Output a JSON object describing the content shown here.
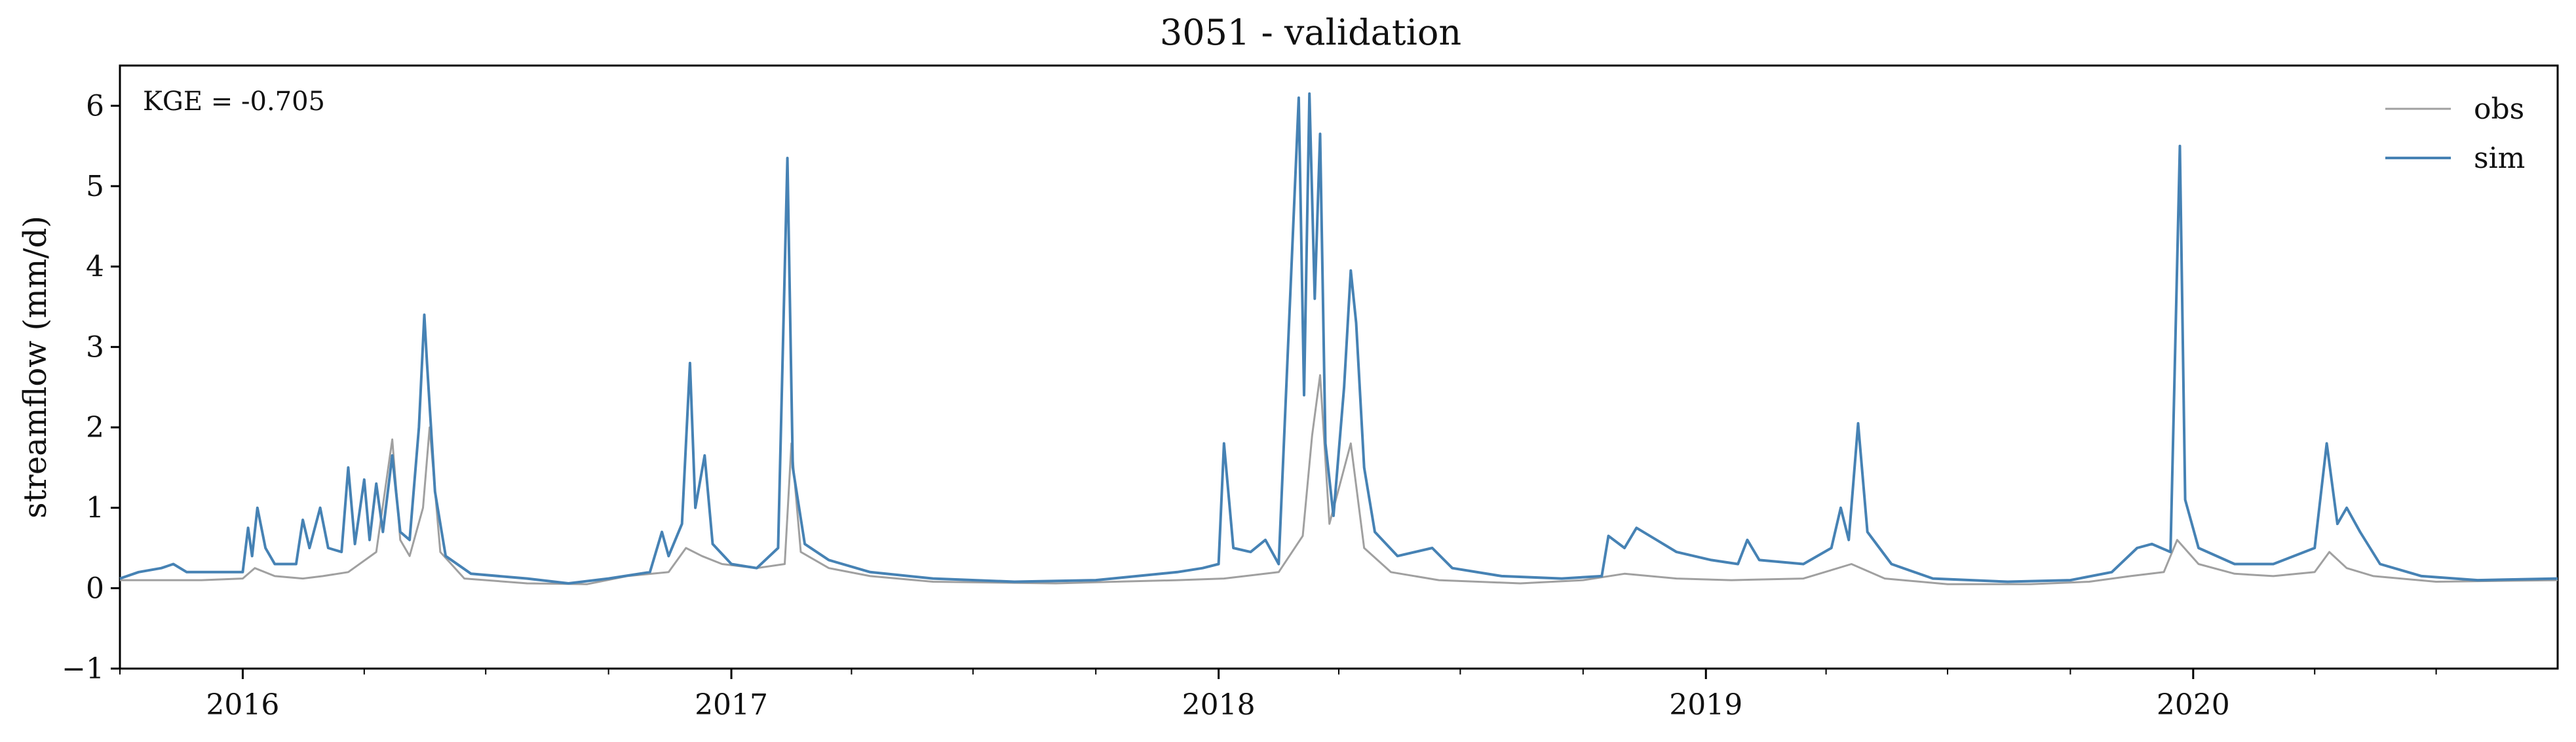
{
  "chart_data": {
    "type": "line",
    "title": "3051 - validation",
    "xlabel": "",
    "ylabel": "streamflow (mm/d)",
    "xlim": [
      "2015-10-01",
      "2020-09-30"
    ],
    "ylim": [
      -1,
      6.5
    ],
    "yticks": [
      -1,
      0,
      1,
      2,
      3,
      4,
      5,
      6
    ],
    "xticks": [
      {
        "date": "2016-01-01",
        "label": "2016"
      },
      {
        "date": "2017-01-01",
        "label": "2017"
      },
      {
        "date": "2018-01-01",
        "label": "2018"
      },
      {
        "date": "2019-01-01",
        "label": "2019"
      },
      {
        "date": "2020-01-01",
        "label": "2020"
      }
    ],
    "grid": false,
    "legend_position": "top-right",
    "annotation": "KGE = -0.705",
    "series": [
      {
        "name": "obs",
        "color": "#a0a0a0",
        "points": [
          [
            "2015-10-01",
            0.1
          ],
          [
            "2015-12-01",
            0.1
          ],
          [
            "2016-01-01",
            0.12
          ],
          [
            "2016-01-10",
            0.25
          ],
          [
            "2016-01-25",
            0.15
          ],
          [
            "2016-02-15",
            0.12
          ],
          [
            "2016-03-01",
            0.15
          ],
          [
            "2016-03-20",
            0.2
          ],
          [
            "2016-04-10",
            0.45
          ],
          [
            "2016-04-22",
            1.85
          ],
          [
            "2016-04-28",
            0.6
          ],
          [
            "2016-05-05",
            0.4
          ],
          [
            "2016-05-15",
            1.0
          ],
          [
            "2016-05-20",
            2.0
          ],
          [
            "2016-05-28",
            0.45
          ],
          [
            "2016-06-15",
            0.12
          ],
          [
            "2016-08-01",
            0.06
          ],
          [
            "2016-09-15",
            0.05
          ],
          [
            "2016-10-15",
            0.15
          ],
          [
            "2016-11-15",
            0.2
          ],
          [
            "2016-11-28",
            0.5
          ],
          [
            "2016-12-10",
            0.4
          ],
          [
            "2016-12-25",
            0.3
          ],
          [
            "2017-01-20",
            0.25
          ],
          [
            "2017-02-10",
            0.3
          ],
          [
            "2017-02-15",
            1.8
          ],
          [
            "2017-02-22",
            0.45
          ],
          [
            "2017-03-15",
            0.25
          ],
          [
            "2017-04-15",
            0.15
          ],
          [
            "2017-06-01",
            0.08
          ],
          [
            "2017-09-01",
            0.06
          ],
          [
            "2017-10-15",
            0.08
          ],
          [
            "2017-12-01",
            0.1
          ],
          [
            "2018-01-05",
            0.12
          ],
          [
            "2018-02-15",
            0.2
          ],
          [
            "2018-03-05",
            0.65
          ],
          [
            "2018-03-12",
            1.9
          ],
          [
            "2018-03-18",
            2.65
          ],
          [
            "2018-03-25",
            0.8
          ],
          [
            "2018-04-10",
            1.8
          ],
          [
            "2018-04-20",
            0.5
          ],
          [
            "2018-05-10",
            0.2
          ],
          [
            "2018-06-15",
            0.1
          ],
          [
            "2018-08-15",
            0.06
          ],
          [
            "2018-10-01",
            0.1
          ],
          [
            "2018-11-01",
            0.18
          ],
          [
            "2018-12-10",
            0.12
          ],
          [
            "2019-01-20",
            0.1
          ],
          [
            "2019-03-15",
            0.12
          ],
          [
            "2019-04-20",
            0.3
          ],
          [
            "2019-05-15",
            0.12
          ],
          [
            "2019-07-01",
            0.05
          ],
          [
            "2019-09-01",
            0.05
          ],
          [
            "2019-10-15",
            0.08
          ],
          [
            "2019-11-15",
            0.15
          ],
          [
            "2019-12-10",
            0.2
          ],
          [
            "2019-12-20",
            0.6
          ],
          [
            "2020-01-05",
            0.3
          ],
          [
            "2020-02-01",
            0.18
          ],
          [
            "2020-03-01",
            0.15
          ],
          [
            "2020-04-01",
            0.2
          ],
          [
            "2020-04-12",
            0.45
          ],
          [
            "2020-04-25",
            0.25
          ],
          [
            "2020-05-15",
            0.15
          ],
          [
            "2020-07-01",
            0.08
          ],
          [
            "2020-09-30",
            0.1
          ]
        ]
      },
      {
        "name": "sim",
        "color": "#4682b4",
        "points": [
          [
            "2015-10-01",
            0.12
          ],
          [
            "2015-10-15",
            0.2
          ],
          [
            "2015-11-01",
            0.25
          ],
          [
            "2015-11-10",
            0.3
          ],
          [
            "2015-11-20",
            0.2
          ],
          [
            "2015-12-15",
            0.2
          ],
          [
            "2016-01-01",
            0.2
          ],
          [
            "2016-01-05",
            0.75
          ],
          [
            "2016-01-08",
            0.4
          ],
          [
            "2016-01-12",
            1.0
          ],
          [
            "2016-01-18",
            0.5
          ],
          [
            "2016-01-25",
            0.3
          ],
          [
            "2016-02-10",
            0.3
          ],
          [
            "2016-02-15",
            0.85
          ],
          [
            "2016-02-20",
            0.5
          ],
          [
            "2016-02-28",
            1.0
          ],
          [
            "2016-03-05",
            0.5
          ],
          [
            "2016-03-15",
            0.45
          ],
          [
            "2016-03-20",
            1.5
          ],
          [
            "2016-03-25",
            0.55
          ],
          [
            "2016-04-01",
            1.35
          ],
          [
            "2016-04-05",
            0.6
          ],
          [
            "2016-04-10",
            1.3
          ],
          [
            "2016-04-15",
            0.7
          ],
          [
            "2016-04-22",
            1.65
          ],
          [
            "2016-04-28",
            0.7
          ],
          [
            "2016-05-05",
            0.6
          ],
          [
            "2016-05-12",
            2.0
          ],
          [
            "2016-05-16",
            3.4
          ],
          [
            "2016-05-18",
            2.8
          ],
          [
            "2016-05-24",
            1.2
          ],
          [
            "2016-06-01",
            0.4
          ],
          [
            "2016-06-20",
            0.18
          ],
          [
            "2016-08-01",
            0.12
          ],
          [
            "2016-09-01",
            0.06
          ],
          [
            "2016-10-01",
            0.12
          ],
          [
            "2016-11-01",
            0.2
          ],
          [
            "2016-11-10",
            0.7
          ],
          [
            "2016-11-15",
            0.4
          ],
          [
            "2016-11-25",
            0.8
          ],
          [
            "2016-12-01",
            2.8
          ],
          [
            "2016-12-05",
            1.0
          ],
          [
            "2016-12-12",
            1.65
          ],
          [
            "2016-12-18",
            0.55
          ],
          [
            "2017-01-01",
            0.3
          ],
          [
            "2017-01-20",
            0.25
          ],
          [
            "2017-02-05",
            0.5
          ],
          [
            "2017-02-12",
            5.35
          ],
          [
            "2017-02-16",
            1.5
          ],
          [
            "2017-02-25",
            0.55
          ],
          [
            "2017-03-15",
            0.35
          ],
          [
            "2017-04-15",
            0.2
          ],
          [
            "2017-06-01",
            0.12
          ],
          [
            "2017-08-01",
            0.08
          ],
          [
            "2017-10-01",
            0.1
          ],
          [
            "2017-12-01",
            0.2
          ],
          [
            "2017-12-20",
            0.25
          ],
          [
            "2018-01-01",
            0.3
          ],
          [
            "2018-01-05",
            1.8
          ],
          [
            "2018-01-12",
            0.5
          ],
          [
            "2018-01-25",
            0.45
          ],
          [
            "2018-02-05",
            0.6
          ],
          [
            "2018-02-15",
            0.3
          ],
          [
            "2018-03-02",
            6.1
          ],
          [
            "2018-03-06",
            2.4
          ],
          [
            "2018-03-10",
            6.15
          ],
          [
            "2018-03-14",
            3.6
          ],
          [
            "2018-03-18",
            5.65
          ],
          [
            "2018-03-22",
            1.8
          ],
          [
            "2018-03-28",
            0.9
          ],
          [
            "2018-04-05",
            2.5
          ],
          [
            "2018-04-10",
            3.95
          ],
          [
            "2018-04-14",
            3.3
          ],
          [
            "2018-04-20",
            1.5
          ],
          [
            "2018-04-28",
            0.7
          ],
          [
            "2018-05-15",
            0.4
          ],
          [
            "2018-06-10",
            0.5
          ],
          [
            "2018-06-25",
            0.25
          ],
          [
            "2018-08-01",
            0.15
          ],
          [
            "2018-09-15",
            0.12
          ],
          [
            "2018-10-15",
            0.15
          ],
          [
            "2018-10-20",
            0.65
          ],
          [
            "2018-11-01",
            0.5
          ],
          [
            "2018-11-10",
            0.75
          ],
          [
            "2018-11-25",
            0.6
          ],
          [
            "2018-12-10",
            0.45
          ],
          [
            "2019-01-05",
            0.35
          ],
          [
            "2019-01-25",
            0.3
          ],
          [
            "2019-02-01",
            0.6
          ],
          [
            "2019-02-10",
            0.35
          ],
          [
            "2019-03-15",
            0.3
          ],
          [
            "2019-04-05",
            0.5
          ],
          [
            "2019-04-12",
            1.0
          ],
          [
            "2019-04-18",
            0.6
          ],
          [
            "2019-04-25",
            2.05
          ],
          [
            "2019-05-02",
            0.7
          ],
          [
            "2019-05-20",
            0.3
          ],
          [
            "2019-06-20",
            0.12
          ],
          [
            "2019-08-15",
            0.08
          ],
          [
            "2019-10-01",
            0.1
          ],
          [
            "2019-11-01",
            0.2
          ],
          [
            "2019-11-20",
            0.5
          ],
          [
            "2019-12-01",
            0.55
          ],
          [
            "2019-12-15",
            0.45
          ],
          [
            "2019-12-22",
            5.5
          ],
          [
            "2019-12-26",
            1.1
          ],
          [
            "2020-01-05",
            0.5
          ],
          [
            "2020-02-01",
            0.3
          ],
          [
            "2020-03-01",
            0.3
          ],
          [
            "2020-04-01",
            0.5
          ],
          [
            "2020-04-10",
            1.8
          ],
          [
            "2020-04-18",
            0.8
          ],
          [
            "2020-04-25",
            1.0
          ],
          [
            "2020-05-05",
            0.7
          ],
          [
            "2020-05-20",
            0.3
          ],
          [
            "2020-06-20",
            0.15
          ],
          [
            "2020-08-01",
            0.1
          ],
          [
            "2020-09-30",
            0.12
          ]
        ]
      }
    ]
  }
}
